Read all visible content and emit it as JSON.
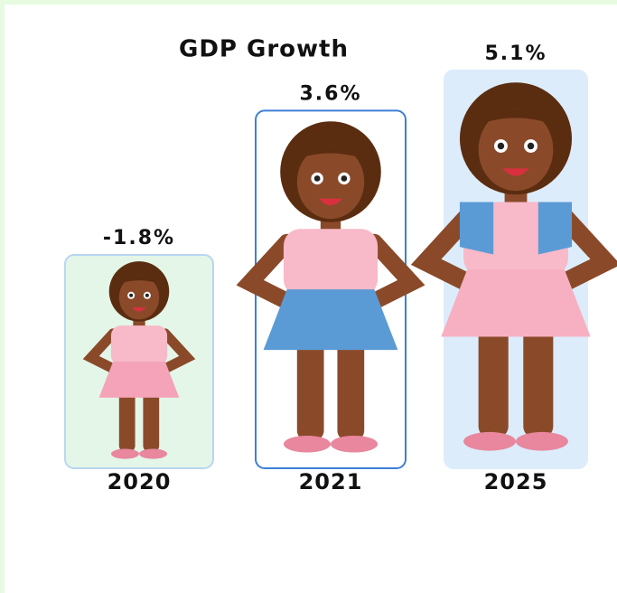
{
  "chart_data": {
    "type": "pictograph",
    "title": "GDP Growth",
    "categories": [
      "2020",
      "2021",
      "2025"
    ],
    "values": [
      -1.8,
      3.6,
      5.1
    ],
    "value_labels": [
      "-1.8%",
      "3.6%",
      "5.1%"
    ],
    "colors": [
      "#e4f6e8",
      "#ffffff",
      "#dcecfb"
    ],
    "border_colors": [
      "#b9d6f2",
      "#3d7fd6",
      "#dcecfb"
    ]
  }
}
